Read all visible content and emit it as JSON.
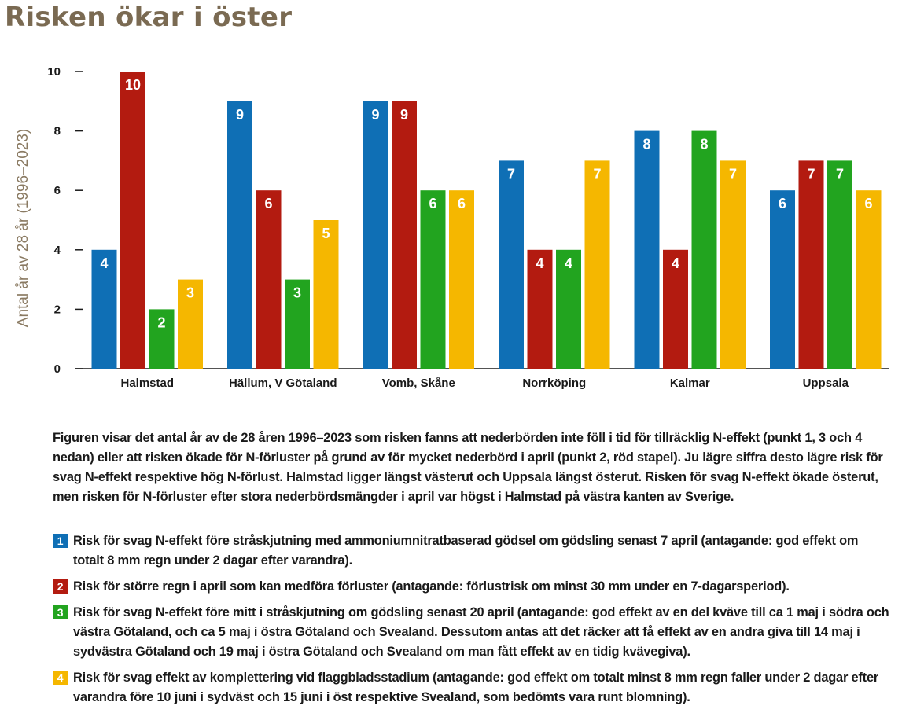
{
  "title": "Risken ökar i öster",
  "colors": {
    "title": "#7a6a52",
    "series": [
      "#0f6fb5",
      "#b31b10",
      "#22a41f",
      "#f5b700"
    ],
    "axis": "#1a1a1a"
  },
  "chart_data": {
    "type": "bar",
    "title": "Risken ökar i öster",
    "xlabel": "",
    "ylabel": "Antal år av 28 år (1996–2023)",
    "ylim": [
      0,
      10
    ],
    "yticks": [
      0,
      2,
      4,
      6,
      8,
      10
    ],
    "grid": false,
    "categories": [
      "Halmstad",
      "Hällum, V Götaland",
      "Vomb, Skåne",
      "Norrköping",
      "Kalmar",
      "Uppsala"
    ],
    "series": [
      {
        "name": "1",
        "values": [
          4,
          9,
          9,
          7,
          8,
          6
        ]
      },
      {
        "name": "2",
        "values": [
          10,
          6,
          9,
          4,
          4,
          7
        ]
      },
      {
        "name": "3",
        "values": [
          2,
          3,
          6,
          4,
          8,
          7
        ]
      },
      {
        "name": "4",
        "values": [
          3,
          5,
          6,
          7,
          7,
          6
        ]
      }
    ]
  },
  "caption": "Figuren visar det antal år av de 28 åren 1996–2023 som risken fanns att nederbörden inte föll i tid för tillräcklig N-effekt (punkt 1, 3 och 4 nedan) eller att risken ökade för N-förluster på grund av för mycket nederbörd i april (punkt 2, röd stapel). Ju lägre siffra desto lägre risk för svag N-effekt respektive hög N-förlust. Halmstad ligger längst västerut och Uppsala längst österut. Risken för svag N-effekt ökade österut, men risken för N-förluster efter stora nederbördsmängder i april var högst i Halmstad på västra kanten av Sverige.",
  "notes": [
    {
      "num": "1",
      "text": "Risk för svag N-effekt före stråskjutning med ammoniumnitratbaserad gödsel om gödsling senast 7 april (antagande: god effekt om totalt 8 mm regn under 2 dagar efter varandra)."
    },
    {
      "num": "2",
      "text": "Risk för större regn i april som kan medföra förluster (antagande: förlustrisk om minst 30 mm under en 7-dagarsperiod)."
    },
    {
      "num": "3",
      "text": "Risk för svag N-effekt före mitt i stråskjutning om gödsling senast 20 april (antagande: god effekt av en del kväve till ca 1 maj i södra och västra Götaland, och ca 5 maj i östra Götaland och Svealand. Dessutom antas att det räcker att få effekt av en andra giva till 14 maj i sydvästra Götaland och 19 maj i östra Götaland och Svealand om man fått effekt av en tidig kvävegiva)."
    },
    {
      "num": "4",
      "text": "Risk för svag effekt av komplettering vid flaggbladsstadium (antagande: god effekt om totalt minst 8 mm regn faller under 2 dagar efter varandra före 10 juni i sydväst och 15 juni i öst respektive Svealand, som bedömts vara runt blomning)."
    }
  ]
}
